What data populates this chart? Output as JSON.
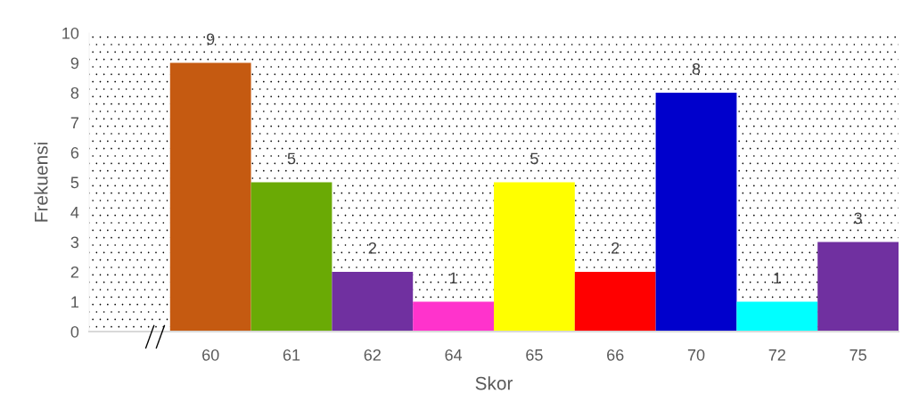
{
  "chart_data": {
    "type": "bar",
    "xlabel": "Skor",
    "ylabel": "Frekuensi",
    "categories": [
      null,
      "60",
      "61",
      "62",
      "64",
      "65",
      "66",
      "70",
      "72",
      "75"
    ],
    "values": [
      null,
      9,
      5,
      2,
      1,
      5,
      2,
      8,
      1,
      3
    ],
    "colors": [
      "#ffffff",
      "#c55a11",
      "#6aaa05",
      "#7030a0",
      "#ff33cc",
      "#ffff00",
      "#ff0000",
      "#0000cc",
      "#00ffff",
      "#7030a0"
    ],
    "ylim": [
      0,
      10
    ],
    "yticks": [
      0,
      1,
      2,
      3,
      4,
      5,
      6,
      7,
      8,
      9,
      10
    ],
    "data_labels": true,
    "grid": false
  }
}
